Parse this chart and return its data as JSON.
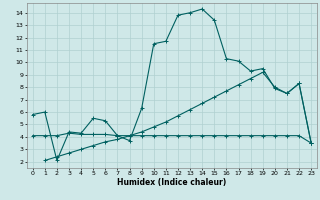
{
  "xlabel": "Humidex (Indice chaleur)",
  "xlim": [
    -0.5,
    23.5
  ],
  "ylim": [
    1.5,
    14.8
  ],
  "yticks": [
    2,
    3,
    4,
    5,
    6,
    7,
    8,
    9,
    10,
    11,
    12,
    13,
    14
  ],
  "xticks": [
    0,
    1,
    2,
    3,
    4,
    5,
    6,
    7,
    8,
    9,
    10,
    11,
    12,
    13,
    14,
    15,
    16,
    17,
    18,
    19,
    20,
    21,
    22,
    23
  ],
  "bg_color": "#cfe8e8",
  "grid_color": "#b0d0d0",
  "line_color": "#006060",
  "line1_x": [
    0,
    1,
    2,
    3,
    4,
    5,
    6,
    7,
    8,
    9,
    10,
    11,
    12,
    13,
    14,
    15,
    16,
    17,
    18,
    19,
    20,
    21,
    22,
    23
  ],
  "line1_y": [
    5.8,
    6.0,
    2.1,
    4.4,
    4.3,
    5.5,
    5.3,
    4.1,
    3.7,
    6.3,
    11.5,
    11.7,
    13.8,
    14.0,
    14.3,
    13.4,
    10.3,
    10.1,
    9.3,
    9.5,
    7.9,
    7.5,
    8.3,
    3.5
  ],
  "line2_x": [
    0,
    1,
    2,
    3,
    4,
    5,
    6,
    7,
    8,
    9,
    10,
    11,
    12,
    13,
    14,
    15,
    16,
    17,
    18,
    19,
    20,
    21,
    22,
    23
  ],
  "line2_y": [
    4.1,
    4.1,
    4.1,
    4.3,
    4.2,
    4.2,
    4.2,
    4.1,
    4.1,
    4.1,
    4.1,
    4.1,
    4.1,
    4.1,
    4.1,
    4.1,
    4.1,
    4.1,
    4.1,
    4.1,
    4.1,
    4.1,
    4.1,
    3.5
  ],
  "line3_x": [
    1,
    2,
    3,
    4,
    5,
    6,
    7,
    8,
    9,
    10,
    11,
    12,
    13,
    14,
    15,
    16,
    17,
    18,
    19,
    20,
    21,
    22,
    23
  ],
  "line3_y": [
    2.1,
    2.4,
    2.7,
    3.0,
    3.3,
    3.6,
    3.8,
    4.1,
    4.4,
    4.8,
    5.2,
    5.7,
    6.2,
    6.7,
    7.2,
    7.7,
    8.2,
    8.7,
    9.2,
    8.0,
    7.5,
    8.3,
    3.5
  ]
}
